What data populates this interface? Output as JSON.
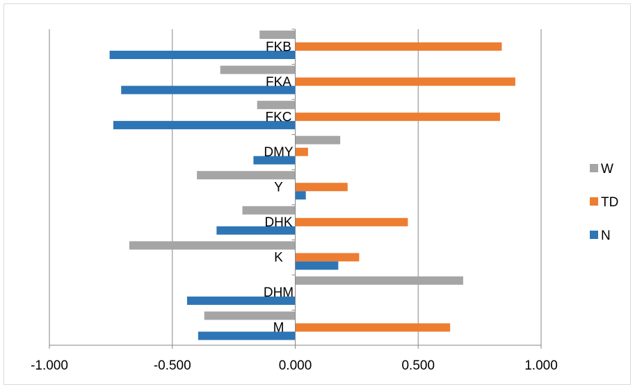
{
  "chart_data": {
    "type": "bar",
    "orientation": "horizontal",
    "categories": [
      "FKB",
      "FKA",
      "FKC",
      "DMY",
      "Y",
      "DHK",
      "K",
      "DHM",
      "M"
    ],
    "series": [
      {
        "name": "W",
        "color": "#a5a5a5",
        "values": [
          -0.145,
          -0.305,
          -0.155,
          0.183,
          -0.4,
          -0.215,
          -0.675,
          0.683,
          -0.37
        ]
      },
      {
        "name": "TD",
        "color": "#ed7d31",
        "values": [
          0.84,
          0.895,
          0.833,
          0.052,
          0.213,
          0.458,
          0.26,
          0.0,
          0.63
        ]
      },
      {
        "name": "N",
        "color": "#2e75b6",
        "values": [
          -0.755,
          -0.708,
          -0.74,
          -0.17,
          0.043,
          -0.32,
          0.175,
          -0.44,
          -0.395
        ]
      }
    ],
    "xlim": [
      -1.0,
      1.0
    ],
    "x_ticks": [
      "-1.000",
      "-0.500",
      "0.000",
      "0.500",
      "1.000"
    ],
    "x_tick_values": [
      -1.0,
      -0.5,
      0.0,
      0.5,
      1.0
    ],
    "grid": true,
    "legend": {
      "placement": "right",
      "order": [
        "W",
        "TD",
        "N"
      ]
    },
    "title": "",
    "xlabel": "",
    "ylabel": ""
  }
}
